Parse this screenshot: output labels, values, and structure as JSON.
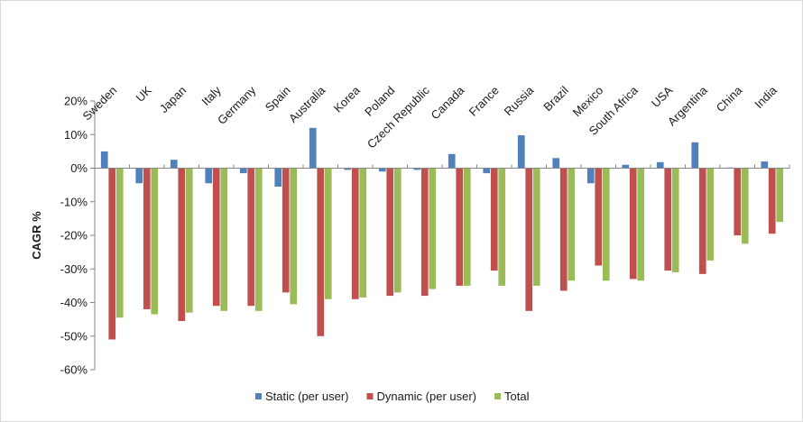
{
  "chart_data": {
    "type": "bar",
    "title": "",
    "xlabel": "",
    "ylabel": "CAGR %",
    "ylim": [
      -60,
      20
    ],
    "ytick_step": 10,
    "y_tick_suffix": "%",
    "grid": false,
    "legend": "bottom",
    "categories": [
      "Sweden",
      "UK",
      "Japan",
      "Italy",
      "Germany",
      "Spain",
      "Australia",
      "Korea",
      "Poland",
      "Czech Republic",
      "Canada",
      "France",
      "Russia",
      "Brazil",
      "Mexico",
      "South Africa",
      "USA",
      "Argentina",
      "China",
      "India"
    ],
    "series": [
      {
        "name": "Static (per user)",
        "color": "#4f81bd",
        "values": [
          5,
          -4.5,
          2.5,
          -4.5,
          -1.5,
          -5.5,
          12,
          -0.5,
          -1,
          -0.5,
          4.2,
          -1.5,
          9.8,
          3,
          -4.5,
          1,
          1.8,
          7.7,
          0.2,
          2
        ]
      },
      {
        "name": "Dynamic (per user)",
        "color": "#c0504d",
        "values": [
          -51,
          -42,
          -45.5,
          -41,
          -41,
          -37,
          -50,
          -39,
          -38,
          -38,
          -35,
          -30.5,
          -42.5,
          -36.5,
          -29,
          -33,
          -30.5,
          -31.5,
          -20,
          -19.5
        ]
      },
      {
        "name": "Total",
        "color": "#9bbb59",
        "values": [
          -44.5,
          -43.5,
          -43,
          -42.5,
          -42.5,
          -40.5,
          -39,
          -38.5,
          -37,
          -36,
          -35,
          -35,
          -35,
          -33.5,
          -33.5,
          -33.5,
          -31,
          -27.5,
          -22.5,
          -16
        ]
      }
    ]
  }
}
